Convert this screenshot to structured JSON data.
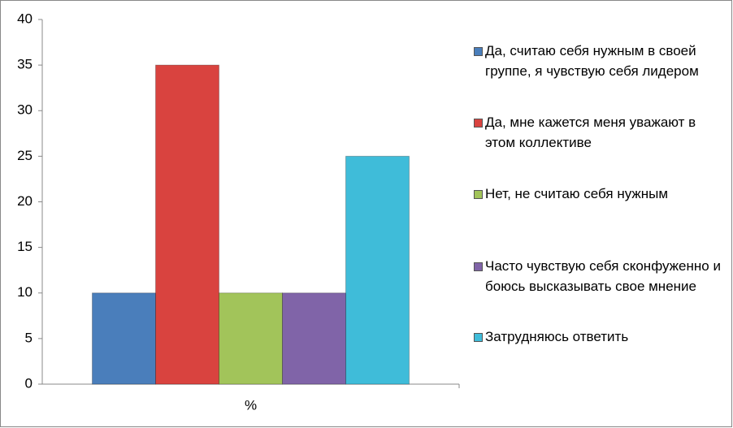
{
  "chart_data": {
    "type": "bar",
    "categories": [
      "%"
    ],
    "series": [
      {
        "name": "Да, считаю себя нужным в своей группе, я чувствую себя лидером",
        "color": "#4a7ebb",
        "values": [
          10
        ]
      },
      {
        "name": "Да, мне кажется меня уважают в этом коллективе",
        "color": "#d9433f",
        "values": [
          35
        ]
      },
      {
        "name": "Нет, не считаю себя нужным",
        "color": "#a2c45a",
        "values": [
          10
        ]
      },
      {
        "name": "Часто чувствую себя сконфуженно и боюсь высказывать свое мнение",
        "color": "#8064a8",
        "values": [
          10
        ]
      },
      {
        "name": "Затрудняюсь ответить",
        "color": "#3fbcd9",
        "values": [
          25
        ]
      }
    ],
    "ylim": [
      0,
      40
    ],
    "yticks": [
      0,
      5,
      10,
      15,
      20,
      25,
      30,
      35,
      40
    ],
    "grid": false,
    "legend": "right"
  }
}
